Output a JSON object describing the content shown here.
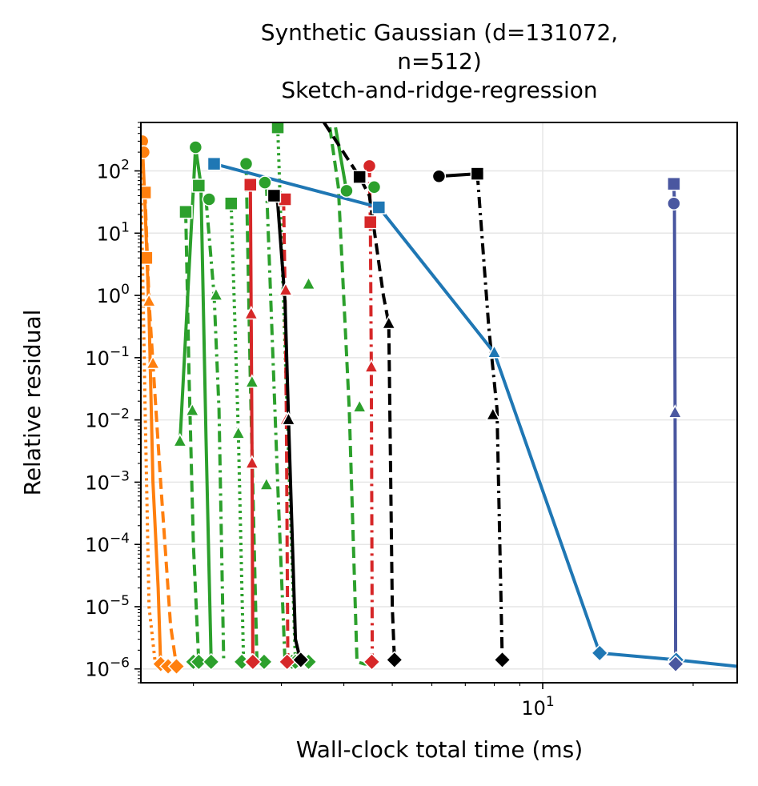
{
  "chart_data": {
    "type": "line",
    "title": [
      "Synthetic Gaussian (d=131072,",
      "n=512)",
      "Sketch-and-ridge-regression"
    ],
    "xlabel": "Wall-clock total time (ms)",
    "ylabel": "Relative residual",
    "xscale": "log",
    "yscale": "log",
    "xlim": [
      1.57,
      24.5
    ],
    "ylim": [
      6e-07,
      600
    ],
    "grid": true,
    "xticks": [
      {
        "value": 10,
        "base": "10",
        "exp": "1"
      }
    ],
    "yticks": [
      {
        "value": 100,
        "base": "10",
        "exp": "2"
      },
      {
        "value": 10,
        "base": "10",
        "exp": "1"
      },
      {
        "value": 1,
        "base": "10",
        "exp": "0"
      },
      {
        "value": 0.1,
        "base": "10",
        "exp": "−1"
      },
      {
        "value": 0.01,
        "base": "10",
        "exp": "−2"
      },
      {
        "value": 0.001,
        "base": "10",
        "exp": "−3"
      },
      {
        "value": 0.0001,
        "base": "10",
        "exp": "−4"
      },
      {
        "value": 1e-05,
        "base": "10",
        "exp": "−5"
      },
      {
        "value": 1e-06,
        "base": "10",
        "exp": "−6"
      }
    ],
    "series": [
      {
        "color": "#ff7f0e",
        "dash": "solid",
        "x": [
          1.58,
          1.6,
          1.63,
          1.66,
          1.7,
          1.72
        ],
        "y": [
          300,
          30,
          0.5,
          0.001,
          2e-05,
          1.2e-06
        ]
      },
      {
        "color": "#ff7f0e",
        "dash": "dash",
        "x": [
          1.6,
          1.63,
          1.66,
          1.72,
          1.8,
          1.85
        ],
        "y": [
          45,
          0.8,
          0.08,
          0.001,
          5e-06,
          1.1e-06
        ]
      },
      {
        "color": "#ff7f0e",
        "dash": "dot",
        "x": [
          1.57,
          1.6,
          1.63,
          1.68
        ],
        "y": [
          100,
          0.02,
          1e-05,
          1.1e-06
        ]
      },
      {
        "color": "#2ca02c",
        "dash": "solid",
        "x": [
          1.88,
          2.02,
          2.07,
          2.12,
          2.17
        ],
        "y": [
          0.0045,
          240,
          60,
          0.005,
          1.3e-06
        ]
      },
      {
        "color": "#2ca02c",
        "dash": "dash",
        "x": [
          1.93,
          1.96,
          2.0,
          2.05
        ],
        "y": [
          22,
          0.05,
          0.0001,
          1.3e-06
        ]
      },
      {
        "color": "#2ca02c",
        "dash": "dashdot",
        "x": [
          2.12,
          2.2,
          2.25,
          2.3
        ],
        "y": [
          35,
          1.0,
          0.015,
          1.3e-06
        ]
      },
      {
        "color": "#2ca02c",
        "dash": "dot",
        "x": [
          2.38,
          2.46,
          2.52,
          2.6
        ],
        "y": [
          30,
          0.006,
          1.3e-06,
          1.3e-06
        ]
      },
      {
        "color": "#2ca02c",
        "dash": "dash",
        "x": [
          2.55,
          2.6,
          2.68,
          2.77
        ],
        "y": [
          130,
          0.04,
          1.3e-06,
          1.3e-06
        ]
      },
      {
        "color": "#2ca02c",
        "dash": "dashdot",
        "x": [
          2.8,
          2.95,
          3.05,
          3.2
        ],
        "y": [
          60,
          0.0009,
          1.3e-06,
          1.3e-06
        ]
      },
      {
        "color": "#2ca02c",
        "dash": "dot",
        "x": [
          2.95,
          3.2,
          3.4
        ],
        "y": [
          500,
          1.3e-06,
          1.2e-06
        ]
      },
      {
        "color": "#2ca02c",
        "dash": "dash",
        "x": [
          3.75,
          3.9,
          4.1,
          4.25,
          4.4,
          4.6
        ],
        "y": [
          500,
          55,
          0.015,
          1.3e-06,
          1.2e-06,
          1.2e-06
        ]
      },
      {
        "color": "#2ca02c",
        "dash": "solid",
        "x": [
          3.85,
          4.05
        ],
        "y": [
          500,
          48
        ]
      },
      {
        "color": "#d62728",
        "dash": "solid",
        "x": [
          2.6,
          2.61,
          2.62,
          2.63,
          2.64
        ],
        "y": [
          60,
          0.5,
          0.002,
          1.3e-06,
          1.1e-06
        ]
      },
      {
        "color": "#d62728",
        "dash": "dash",
        "x": [
          3.03,
          3.05,
          3.07,
          3.09,
          3.1
        ],
        "y": [
          35,
          1.2,
          0.01,
          1.3e-06,
          1.1e-06
        ]
      },
      {
        "color": "#d62728",
        "dash": "dashdot",
        "x": [
          4.5,
          4.52,
          4.54,
          4.56,
          4.57
        ],
        "y": [
          120,
          15,
          0.07,
          1.3e-06,
          1.1e-06
        ]
      },
      {
        "color": "#000000",
        "dash": "solid",
        "x": [
          2.9,
          2.95,
          3.05,
          3.1,
          3.2,
          3.28
        ],
        "y": [
          40,
          30,
          0.8,
          0.01,
          3e-06,
          1.3e-06
        ]
      },
      {
        "color": "#000000",
        "dash": "dash",
        "x": [
          3.65,
          4.3,
          4.5,
          4.8,
          4.92,
          5.0,
          5.05
        ],
        "y": [
          600,
          80,
          40,
          1.0,
          0.35,
          1e-05,
          1.4e-06
        ]
      },
      {
        "color": "#000000",
        "dash": "solid",
        "x": [
          6.2,
          7.4
        ],
        "y": [
          82,
          90
        ]
      },
      {
        "color": "#000000",
        "dash": "dashdot",
        "x": [
          7.4,
          7.8,
          8.1,
          8.3
        ],
        "y": [
          90,
          0.3,
          0.015,
          1.4e-06
        ]
      },
      {
        "color": "#1f77b4",
        "dash": "solid",
        "x": [
          2.2,
          4.7,
          8.0,
          13.0,
          18.5,
          24.5
        ],
        "y": [
          130,
          26,
          0.12,
          1.8e-06,
          1.4e-06,
          1.1e-06
        ]
      },
      {
        "color": "#4a57a0",
        "dash": "solid",
        "x": [
          18.3,
          18.35,
          18.4,
          18.45
        ],
        "y": [
          62,
          30,
          0.013,
          1.2e-06
        ]
      }
    ],
    "markers": [
      {
        "type": "circle",
        "color": "#2ca02c",
        "x": [
          2.02,
          2.15,
          2.55,
          2.78,
          4.05,
          4.6
        ],
        "y": [
          240,
          35,
          130,
          65,
          48,
          55
        ]
      },
      {
        "type": "square",
        "color": "#2ca02c",
        "x": [
          1.93,
          2.05,
          2.38,
          2.95
        ],
        "y": [
          22,
          58,
          30,
          500
        ]
      },
      {
        "type": "triangle",
        "color": "#2ca02c",
        "x": [
          1.88,
          1.99,
          2.22,
          2.46,
          2.62,
          2.8,
          3.4,
          4.3
        ],
        "y": [
          0.0045,
          0.014,
          1.0,
          0.006,
          0.04,
          0.0009,
          1.5,
          0.016
        ]
      },
      {
        "type": "diamond",
        "color": "#2ca02c",
        "x": [
          2.0,
          2.05,
          2.17,
          2.5,
          2.62,
          2.77,
          3.15,
          3.2,
          3.4
        ],
        "y": [
          1.3e-06,
          1.3e-06,
          1.3e-06,
          1.3e-06,
          1.3e-06,
          1.3e-06,
          1.3e-06,
          1.3e-06,
          1.3e-06
        ]
      },
      {
        "type": "circle",
        "color": "#d62728",
        "x": [
          4.5
        ],
        "y": [
          120
        ]
      },
      {
        "type": "square",
        "color": "#d62728",
        "x": [
          2.6,
          3.05,
          4.52
        ],
        "y": [
          60,
          35,
          15
        ]
      },
      {
        "type": "triangle",
        "color": "#d62728",
        "x": [
          2.61,
          2.62,
          3.06,
          3.07,
          4.54
        ],
        "y": [
          0.5,
          0.002,
          1.2,
          0.01,
          0.07
        ]
      },
      {
        "type": "diamond",
        "color": "#d62728",
        "x": [
          2.63,
          3.08,
          4.55
        ],
        "y": [
          1.3e-06,
          1.3e-06,
          1.3e-06
        ]
      },
      {
        "type": "circle",
        "color": "#000000",
        "x": [
          6.2
        ],
        "y": [
          82
        ]
      },
      {
        "type": "square",
        "color": "#000000",
        "x": [
          2.9,
          4.3,
          7.4
        ],
        "y": [
          40,
          80,
          90
        ]
      },
      {
        "type": "triangle",
        "color": "#000000",
        "x": [
          3.1,
          4.92,
          7.95
        ],
        "y": [
          0.01,
          0.35,
          0.012
        ]
      },
      {
        "type": "diamond",
        "color": "#000000",
        "x": [
          3.28,
          5.05,
          8.3
        ],
        "y": [
          1.4e-06,
          1.4e-06,
          1.4e-06
        ]
      },
      {
        "type": "square",
        "color": "#1f77b4",
        "x": [
          2.2,
          4.7
        ],
        "y": [
          130,
          26
        ]
      },
      {
        "type": "triangle",
        "color": "#1f77b4",
        "x": [
          8.0
        ],
        "y": [
          0.12
        ]
      },
      {
        "type": "diamond",
        "color": "#1f77b4",
        "x": [
          13.0,
          18.5
        ],
        "y": [
          1.8e-06,
          1.4e-06
        ]
      },
      {
        "type": "square",
        "color": "#4a57a0",
        "x": [
          18.3
        ],
        "y": [
          62
        ]
      },
      {
        "type": "circle",
        "color": "#4a57a0",
        "x": [
          18.3
        ],
        "y": [
          30
        ]
      },
      {
        "type": "triangle",
        "color": "#4a57a0",
        "x": [
          18.4
        ],
        "y": [
          0.013
        ]
      },
      {
        "type": "diamond",
        "color": "#4a57a0",
        "x": [
          18.45
        ],
        "y": [
          1.2e-06
        ]
      },
      {
        "type": "square",
        "color": "#ff7f0e",
        "x": [
          1.6,
          1.61
        ],
        "y": [
          45,
          4.0
        ]
      },
      {
        "type": "triangle",
        "color": "#ff7f0e",
        "x": [
          1.63,
          1.66
        ],
        "y": [
          0.8,
          0.08
        ]
      },
      {
        "type": "circle",
        "color": "#ff7f0e",
        "x": [
          1.58,
          1.59
        ],
        "y": [
          300,
          200
        ]
      },
      {
        "type": "diamond",
        "color": "#ff7f0e",
        "x": [
          1.72,
          1.78,
          1.85
        ],
        "y": [
          1.2e-06,
          1.1e-06,
          1.1e-06
        ]
      }
    ]
  }
}
